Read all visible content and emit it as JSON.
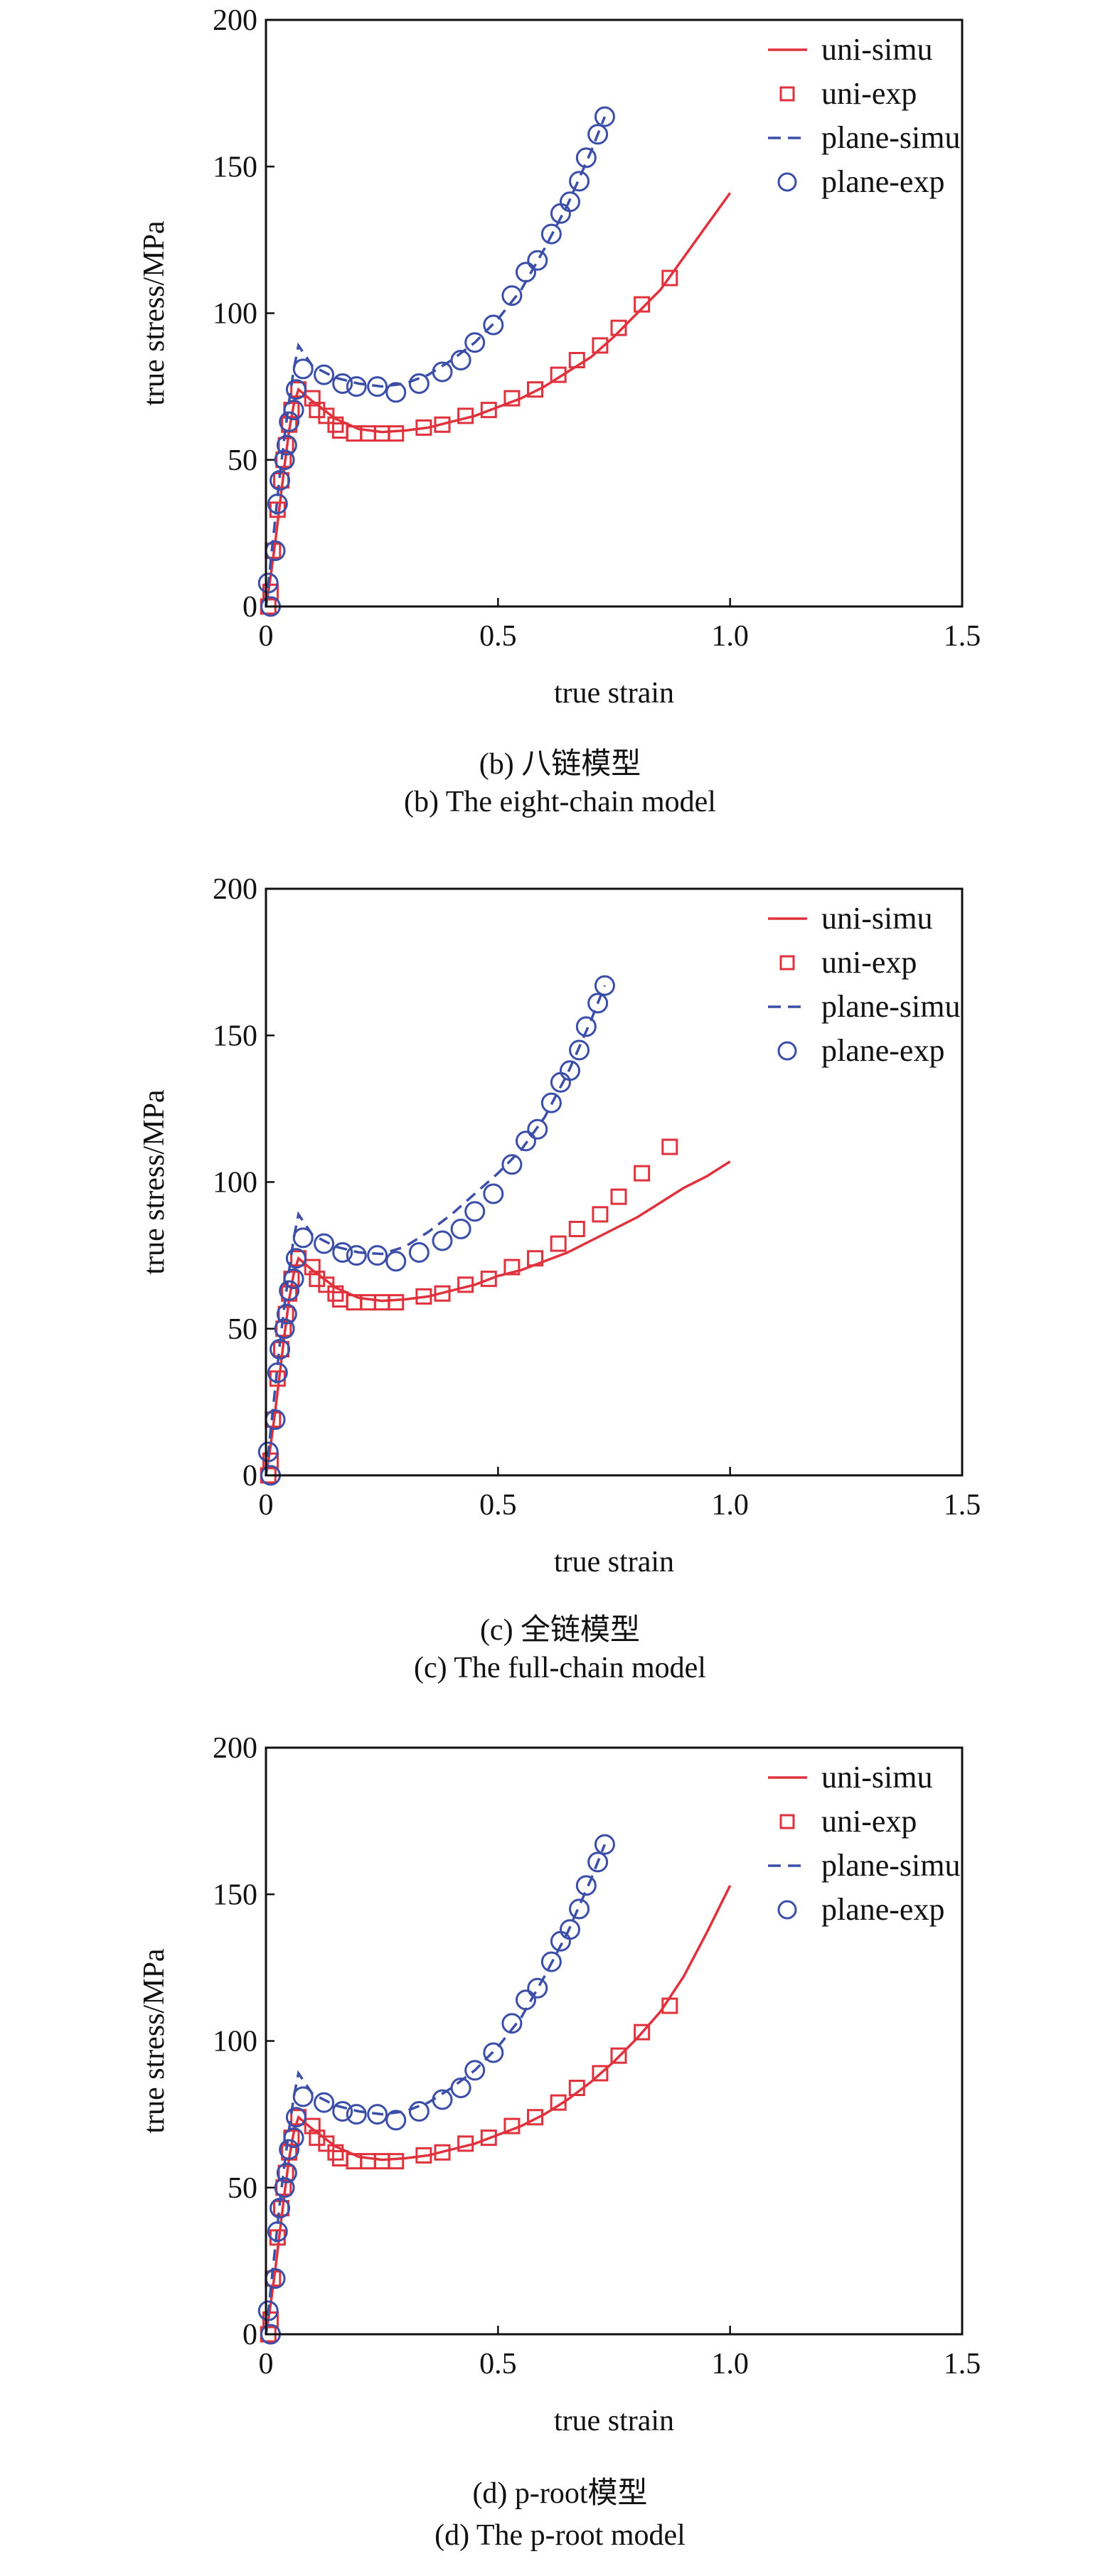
{
  "colors": {
    "uni": "#e0323c",
    "plane": "#3b4ea8",
    "axis": "#111111"
  },
  "chart_data": [
    {
      "type": "line",
      "caption_cn": "(b) 八链模型",
      "caption_en": "(b) The eight-chain model",
      "xlabel": "true strain",
      "ylabel": "true stress/MPa",
      "xlim": [
        0,
        1.5
      ],
      "ylim": [
        0,
        200
      ],
      "xticks": [
        "0",
        "0.5",
        "1.0",
        "1.5"
      ],
      "xtick_values": [
        0,
        0.5,
        1.0,
        1.5
      ],
      "yticks": [
        "0",
        "50",
        "100",
        "150",
        "200"
      ],
      "ytick_values": [
        0,
        50,
        100,
        150,
        200
      ],
      "grid": false,
      "legend": "top-right",
      "series": [
        {
          "name": "uni-simu",
          "style": "solid-line",
          "color": "#e0323c",
          "x": [
            0,
            0.01,
            0.02,
            0.03,
            0.04,
            0.05,
            0.06,
            0.07,
            0.1,
            0.15,
            0.2,
            0.25,
            0.3,
            0.35,
            0.4,
            0.45,
            0.5,
            0.55,
            0.6,
            0.65,
            0.7,
            0.75,
            0.8,
            0.85,
            0.9,
            0.95,
            1.0
          ],
          "y": [
            0,
            10,
            22,
            35,
            48,
            60,
            69,
            74,
            70,
            64,
            60.5,
            59.5,
            60,
            61,
            63,
            65,
            68,
            71,
            75,
            80,
            85,
            92,
            100,
            108,
            119,
            130,
            141
          ]
        },
        {
          "name": "uni-exp",
          "style": "square",
          "color": "#e0323c",
          "x": [
            0.005,
            0.01,
            0.015,
            0.025,
            0.033,
            0.038,
            0.043,
            0.05,
            0.055,
            0.07,
            0.1,
            0.11,
            0.13,
            0.15,
            0.16,
            0.19,
            0.22,
            0.25,
            0.28,
            0.34,
            0.38,
            0.43,
            0.48,
            0.53,
            0.58,
            0.63,
            0.67,
            0.72,
            0.76,
            0.81,
            0.87
          ],
          "y": [
            0,
            5,
            19,
            33,
            43,
            50,
            55,
            62,
            67,
            74,
            71,
            67,
            65,
            62,
            60,
            59,
            59,
            59,
            59,
            61,
            62,
            65,
            67,
            71,
            74,
            79,
            84,
            89,
            95,
            103,
            112
          ]
        },
        {
          "name": "plane-simu",
          "style": "dashed-line",
          "color": "#3b4ea8",
          "x": [
            0,
            0.01,
            0.02,
            0.03,
            0.04,
            0.05,
            0.06,
            0.07,
            0.1,
            0.15,
            0.2,
            0.25,
            0.3,
            0.35,
            0.4,
            0.45,
            0.5,
            0.55,
            0.6,
            0.65,
            0.7,
            0.73
          ],
          "y": [
            0,
            15,
            30,
            45,
            58,
            70,
            81,
            89,
            82,
            78,
            76,
            75,
            76,
            79,
            84,
            90,
            98,
            108,
            122,
            137,
            155,
            167
          ]
        },
        {
          "name": "plane-exp",
          "style": "circle",
          "color": "#3b4ea8",
          "x": [
            0.005,
            0.01,
            0.02,
            0.025,
            0.03,
            0.04,
            0.045,
            0.05,
            0.06,
            0.065,
            0.08,
            0.125,
            0.165,
            0.195,
            0.24,
            0.28,
            0.33,
            0.38,
            0.42,
            0.45,
            0.49,
            0.53,
            0.56,
            0.585,
            0.615,
            0.635,
            0.655,
            0.675,
            0.69,
            0.715,
            0.73
          ],
          "y": [
            8,
            0,
            19,
            35,
            43,
            50,
            55,
            63,
            67,
            74,
            81,
            79,
            76,
            75,
            75,
            73,
            76,
            80,
            84,
            90,
            96,
            106,
            114,
            118,
            127,
            134,
            138,
            145,
            153,
            161,
            167
          ]
        }
      ]
    },
    {
      "type": "line",
      "caption_cn": "(c) 全链模型",
      "caption_en": "(c) The full-chain model",
      "xlabel": "true strain",
      "ylabel": "true stress/MPa",
      "xlim": [
        0,
        1.5
      ],
      "ylim": [
        0,
        200
      ],
      "xticks": [
        "0",
        "0.5",
        "1.0",
        "1.5"
      ],
      "xtick_values": [
        0,
        0.5,
        1.0,
        1.5
      ],
      "yticks": [
        "0",
        "50",
        "100",
        "150",
        "200"
      ],
      "ytick_values": [
        0,
        50,
        100,
        150,
        200
      ],
      "grid": false,
      "legend": "top-right",
      "series": [
        {
          "name": "uni-simu",
          "style": "solid-line",
          "color": "#e0323c",
          "x": [
            0,
            0.01,
            0.02,
            0.03,
            0.04,
            0.05,
            0.06,
            0.07,
            0.1,
            0.15,
            0.2,
            0.25,
            0.3,
            0.35,
            0.4,
            0.45,
            0.5,
            0.55,
            0.6,
            0.65,
            0.7,
            0.75,
            0.8,
            0.85,
            0.9,
            0.95,
            1.0
          ],
          "y": [
            0,
            10,
            22,
            35,
            48,
            60,
            69,
            74,
            70,
            64,
            60.5,
            59.5,
            60,
            61,
            63,
            65,
            68,
            70,
            73,
            76,
            80,
            84,
            88,
            93,
            98,
            102,
            107
          ]
        },
        {
          "name": "uni-exp",
          "style": "square",
          "color": "#e0323c",
          "x": [
            0.005,
            0.01,
            0.015,
            0.025,
            0.033,
            0.038,
            0.043,
            0.05,
            0.055,
            0.07,
            0.1,
            0.11,
            0.13,
            0.15,
            0.16,
            0.19,
            0.22,
            0.25,
            0.28,
            0.34,
            0.38,
            0.43,
            0.48,
            0.53,
            0.58,
            0.63,
            0.67,
            0.72,
            0.76,
            0.81,
            0.87
          ],
          "y": [
            0,
            5,
            19,
            33,
            43,
            50,
            55,
            62,
            67,
            74,
            71,
            67,
            65,
            62,
            60,
            59,
            59,
            59,
            59,
            61,
            62,
            65,
            67,
            71,
            74,
            79,
            84,
            89,
            95,
            103,
            112
          ]
        },
        {
          "name": "plane-simu",
          "style": "dashed-line",
          "color": "#3b4ea8",
          "x": [
            0,
            0.01,
            0.02,
            0.03,
            0.04,
            0.05,
            0.06,
            0.07,
            0.1,
            0.15,
            0.2,
            0.25,
            0.3,
            0.35,
            0.4,
            0.45,
            0.5,
            0.55,
            0.6,
            0.65,
            0.7,
            0.73
          ],
          "y": [
            0,
            15,
            30,
            45,
            58,
            70,
            81,
            89,
            82,
            78,
            76,
            75.5,
            78,
            83,
            89,
            96,
            103,
            111,
            122,
            137,
            155,
            167
          ]
        },
        {
          "name": "plane-exp",
          "style": "circle",
          "color": "#3b4ea8",
          "x": [
            0.005,
            0.01,
            0.02,
            0.025,
            0.03,
            0.04,
            0.045,
            0.05,
            0.06,
            0.065,
            0.08,
            0.125,
            0.165,
            0.195,
            0.24,
            0.28,
            0.33,
            0.38,
            0.42,
            0.45,
            0.49,
            0.53,
            0.56,
            0.585,
            0.615,
            0.635,
            0.655,
            0.675,
            0.69,
            0.715,
            0.73
          ],
          "y": [
            8,
            0,
            19,
            35,
            43,
            50,
            55,
            63,
            67,
            74,
            81,
            79,
            76,
            75,
            75,
            73,
            76,
            80,
            84,
            90,
            96,
            106,
            114,
            118,
            127,
            134,
            138,
            145,
            153,
            161,
            167
          ]
        }
      ]
    },
    {
      "type": "line",
      "caption_cn": "(d) p-root模型",
      "caption_en": "(d) The p-root model",
      "xlabel": "true strain",
      "ylabel": "true stress/MPa",
      "xlim": [
        0,
        1.5
      ],
      "ylim": [
        0,
        200
      ],
      "xticks": [
        "0",
        "0.5",
        "1.0",
        "1.5"
      ],
      "xtick_values": [
        0,
        0.5,
        1.0,
        1.5
      ],
      "yticks": [
        "0",
        "50",
        "100",
        "150",
        "200"
      ],
      "ytick_values": [
        0,
        50,
        100,
        150,
        200
      ],
      "grid": false,
      "legend": "top-right",
      "series": [
        {
          "name": "uni-simu",
          "style": "solid-line",
          "color": "#e0323c",
          "x": [
            0,
            0.01,
            0.02,
            0.03,
            0.04,
            0.05,
            0.06,
            0.07,
            0.1,
            0.15,
            0.2,
            0.25,
            0.3,
            0.35,
            0.4,
            0.45,
            0.5,
            0.55,
            0.6,
            0.65,
            0.7,
            0.75,
            0.8,
            0.85,
            0.9,
            0.95,
            1.0
          ],
          "y": [
            0,
            10,
            22,
            35,
            48,
            60,
            69,
            74,
            70,
            64,
            60.5,
            59.5,
            60,
            61,
            63,
            65,
            68,
            71,
            75,
            80,
            86,
            93,
            101,
            110,
            122,
            137,
            153
          ]
        },
        {
          "name": "uni-exp",
          "style": "square",
          "color": "#e0323c",
          "x": [
            0.005,
            0.01,
            0.015,
            0.025,
            0.033,
            0.038,
            0.043,
            0.05,
            0.055,
            0.07,
            0.1,
            0.11,
            0.13,
            0.15,
            0.16,
            0.19,
            0.22,
            0.25,
            0.28,
            0.34,
            0.38,
            0.43,
            0.48,
            0.53,
            0.58,
            0.63,
            0.67,
            0.72,
            0.76,
            0.81,
            0.87
          ],
          "y": [
            0,
            5,
            19,
            33,
            43,
            50,
            55,
            62,
            67,
            74,
            71,
            67,
            65,
            62,
            60,
            59,
            59,
            59,
            59,
            61,
            62,
            65,
            67,
            71,
            74,
            79,
            84,
            89,
            95,
            103,
            112
          ]
        },
        {
          "name": "plane-simu",
          "style": "dashed-line",
          "color": "#3b4ea8",
          "x": [
            0,
            0.01,
            0.02,
            0.03,
            0.04,
            0.05,
            0.06,
            0.07,
            0.1,
            0.15,
            0.2,
            0.25,
            0.3,
            0.35,
            0.4,
            0.45,
            0.5,
            0.55,
            0.6,
            0.65,
            0.7,
            0.73
          ],
          "y": [
            0,
            15,
            30,
            45,
            58,
            70,
            81,
            89,
            82,
            78,
            76,
            75,
            76,
            79,
            84,
            90,
            98,
            108,
            122,
            137,
            155,
            167
          ]
        },
        {
          "name": "plane-exp",
          "style": "circle",
          "color": "#3b4ea8",
          "x": [
            0.005,
            0.01,
            0.02,
            0.025,
            0.03,
            0.04,
            0.045,
            0.05,
            0.06,
            0.065,
            0.08,
            0.125,
            0.165,
            0.195,
            0.24,
            0.28,
            0.33,
            0.38,
            0.42,
            0.45,
            0.49,
            0.53,
            0.56,
            0.585,
            0.615,
            0.635,
            0.655,
            0.675,
            0.69,
            0.715,
            0.73
          ],
          "y": [
            8,
            0,
            19,
            35,
            43,
            50,
            55,
            63,
            67,
            74,
            81,
            79,
            76,
            75,
            75,
            73,
            76,
            80,
            84,
            90,
            96,
            106,
            114,
            118,
            127,
            134,
            138,
            145,
            153,
            161,
            167
          ]
        }
      ]
    }
  ]
}
